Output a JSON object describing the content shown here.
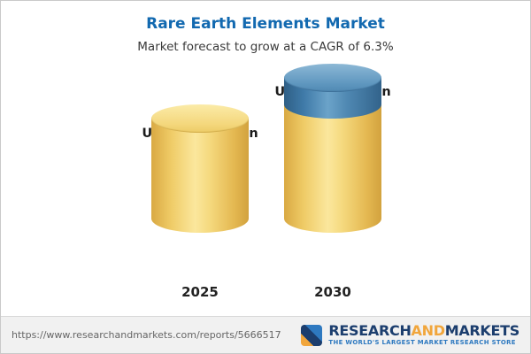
{
  "header": {
    "title": "Rare Earth Elements Market",
    "subtitle": "Market forecast to grow at a CAGR of 6.3%"
  },
  "chart_data": {
    "type": "bar",
    "style": "3d-cylinder",
    "title": "Rare Earth Elements Market",
    "subtitle": "Market forecast to grow at a CAGR of 6.3%",
    "unit": "USD Billion",
    "cagr_percent": 6.3,
    "categories": [
      "2025",
      "2030"
    ],
    "values": [
      5.73,
      7.79
    ],
    "value_labels": [
      "USD 5.73 Billion",
      "USD 7.79 Billion"
    ],
    "ylim": [
      0,
      8
    ],
    "grid": false,
    "legend": false,
    "bar_color": "#f2cf6d",
    "highlight": {
      "bar": "2030",
      "top_segment_value": 2.06,
      "color": "#4e87b4",
      "meaning": "incremental growth over 2025"
    }
  },
  "footer": {
    "url": "https://www.researchandmarkets.com/reports/5666517",
    "logo": {
      "part1": "RESEARCH",
      "part2": "AND",
      "part3": "MARKETS",
      "tagline": "THE WORLD'S LARGEST MARKET RESEARCH STORE",
      "navy": "#1c3e6e",
      "orange": "#f1a63c",
      "tagline_blue": "#2e79c0"
    }
  }
}
